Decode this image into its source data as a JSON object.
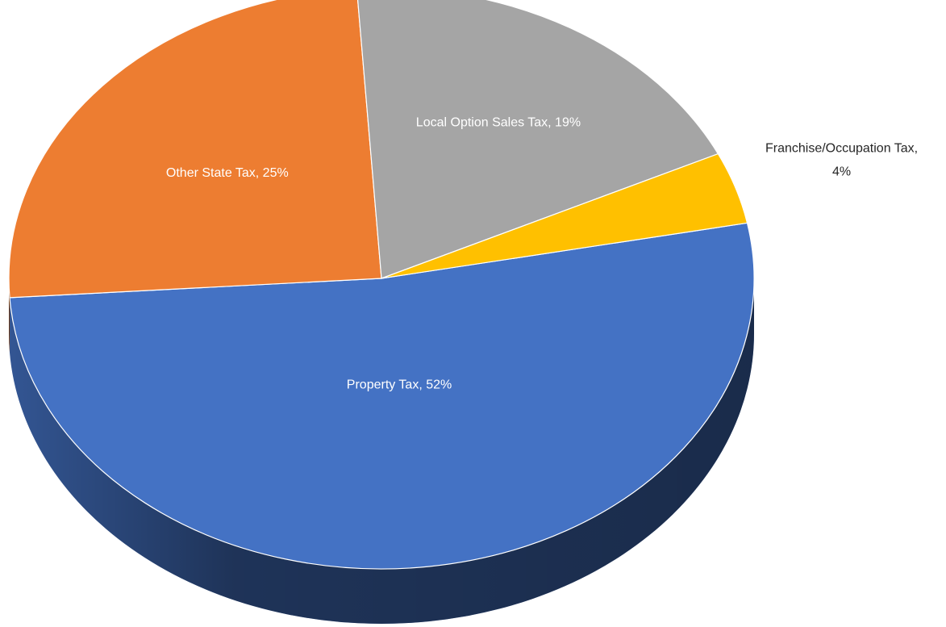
{
  "chart_data": {
    "type": "pie",
    "values": [
      52,
      25,
      19,
      4
    ],
    "value_labels": [
      "Property Tax, 52%",
      "Other State Tax, 25%",
      "Local Option Sales Tax, 19%",
      "Franchise/Occupation Tax, 4%"
    ],
    "colors": [
      "#4472c4",
      "#ed7d31",
      "#a5a5a5",
      "#ffc000"
    ]
  }
}
